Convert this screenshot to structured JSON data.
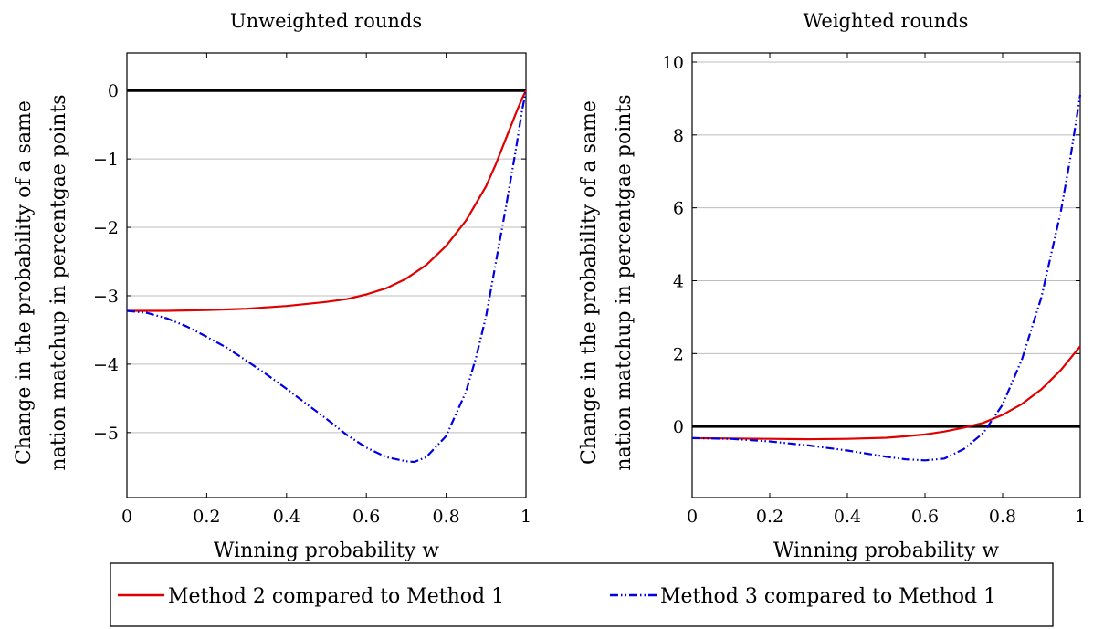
{
  "chart_data": [
    {
      "type": "line",
      "title": "Unweighted rounds",
      "xlabel": "Winning probability w",
      "ylabel": [
        "Change in the probability of a same",
        "nation matchup in percentgae points"
      ],
      "xlim": [
        0,
        1
      ],
      "ylim": [
        -5.95,
        0.55
      ],
      "xticks": [
        0,
        0.2,
        0.4,
        0.6,
        0.8,
        1
      ],
      "yticks": [
        0,
        -1,
        -2,
        -3,
        -4,
        -5
      ],
      "xtick_labels": [
        "0",
        "0.2",
        "0.4",
        "0.6",
        "0.8",
        "1"
      ],
      "ytick_labels": [
        "0",
        "−1",
        "−2",
        "−3",
        "−4",
        "−5"
      ],
      "grid": "horizontal",
      "reference_line": 0,
      "series": [
        {
          "name": "Method 2 compared to Method 1",
          "color": "#e00000",
          "style": "solid",
          "x": [
            0,
            0.1,
            0.2,
            0.3,
            0.4,
            0.5,
            0.55,
            0.6,
            0.65,
            0.7,
            0.75,
            0.8,
            0.85,
            0.9,
            0.925,
            0.95,
            0.975,
            0.99,
            1
          ],
          "y": [
            -3.22,
            -3.22,
            -3.21,
            -3.19,
            -3.15,
            -3.09,
            -3.05,
            -2.98,
            -2.89,
            -2.75,
            -2.55,
            -2.27,
            -1.9,
            -1.4,
            -1.07,
            -0.7,
            -0.33,
            -0.12,
            0
          ]
        },
        {
          "name": "Method 3 compared to Method 1",
          "color": "#0000e0",
          "style": "dash-dot-dot",
          "x": [
            0,
            0.05,
            0.1,
            0.15,
            0.2,
            0.25,
            0.3,
            0.35,
            0.4,
            0.45,
            0.5,
            0.55,
            0.6,
            0.65,
            0.7,
            0.72,
            0.75,
            0.8,
            0.85,
            0.875,
            0.9,
            0.925,
            0.95,
            0.975,
            0.99,
            1
          ],
          "y": [
            -3.22,
            -3.25,
            -3.33,
            -3.45,
            -3.6,
            -3.76,
            -3.95,
            -4.15,
            -4.36,
            -4.58,
            -4.8,
            -5.03,
            -5.22,
            -5.36,
            -5.42,
            -5.43,
            -5.36,
            -5.05,
            -4.4,
            -3.9,
            -3.3,
            -2.5,
            -1.7,
            -0.85,
            -0.3,
            0
          ]
        }
      ]
    },
    {
      "type": "line",
      "title": "Weighted rounds",
      "xlabel": "Winning probability w",
      "ylabel": [
        "Change in the probability of a same",
        "nation matchup in percentgae points"
      ],
      "xlim": [
        0,
        1
      ],
      "ylim": [
        -1.95,
        10.25
      ],
      "xticks": [
        0,
        0.2,
        0.4,
        0.6,
        0.8,
        1
      ],
      "yticks": [
        0,
        2,
        4,
        6,
        8,
        10
      ],
      "xtick_labels": [
        "0",
        "0.2",
        "0.4",
        "0.6",
        "0.8",
        "1"
      ],
      "ytick_labels": [
        "0",
        "2",
        "4",
        "6",
        "8",
        "10"
      ],
      "grid": "horizontal",
      "reference_line": 0,
      "series": [
        {
          "name": "Method 2 compared to Method 1",
          "color": "#e00000",
          "style": "solid",
          "x": [
            0,
            0.1,
            0.2,
            0.3,
            0.4,
            0.5,
            0.55,
            0.6,
            0.65,
            0.7,
            0.75,
            0.8,
            0.85,
            0.9,
            0.95,
            1
          ],
          "y": [
            -0.32,
            -0.33,
            -0.34,
            -0.35,
            -0.34,
            -0.31,
            -0.27,
            -0.22,
            -0.14,
            -0.03,
            0.1,
            0.32,
            0.62,
            1.02,
            1.55,
            2.2
          ]
        },
        {
          "name": "Method 3 compared to Method 1",
          "color": "#0000e0",
          "style": "dash-dot-dot",
          "x": [
            0,
            0.1,
            0.2,
            0.3,
            0.4,
            0.5,
            0.55,
            0.6,
            0.65,
            0.7,
            0.75,
            0.8,
            0.85,
            0.9,
            0.95,
            0.975,
            1
          ],
          "y": [
            -0.32,
            -0.34,
            -0.41,
            -0.52,
            -0.66,
            -0.83,
            -0.9,
            -0.93,
            -0.88,
            -0.62,
            -0.18,
            0.6,
            1.85,
            3.55,
            5.9,
            7.4,
            9.1
          ]
        }
      ]
    }
  ],
  "legend": {
    "placement": "bottom-center",
    "entries": [
      {
        "label": "Method 2 compared to Method 1",
        "color": "#e00000",
        "style": "solid"
      },
      {
        "label": "Method 3 compared to Method 1",
        "color": "#0000e0",
        "style": "dash-dot-dot"
      }
    ]
  }
}
